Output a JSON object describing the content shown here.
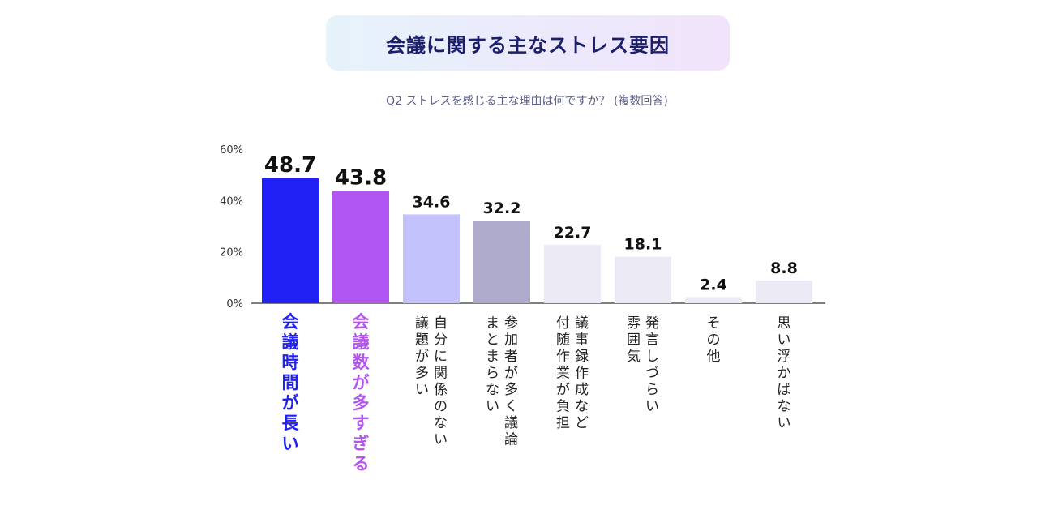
{
  "title": "会議に関する主なストレス要因",
  "subtitle": "Q2 ストレスを感じる主な理由は何ですか？ (複数回答)",
  "chart_data": {
    "type": "bar",
    "ylim": [
      0,
      60
    ],
    "yticks": [
      "0%",
      "20%",
      "40%",
      "60%"
    ],
    "ytick_values": [
      0,
      20,
      40,
      60
    ],
    "categories": [
      [
        "会議時間が長い"
      ],
      [
        "会議数が多すぎる"
      ],
      [
        "自分に関係のない",
        "議題が多い"
      ],
      [
        "参加者が多く議論",
        "まとまらない"
      ],
      [
        "議事録作成など",
        "付随作業が負担"
      ],
      [
        "発言しづらい",
        "雰囲気"
      ],
      [
        "その他"
      ],
      [
        "思い浮かばない"
      ]
    ],
    "values": [
      48.7,
      43.8,
      34.6,
      32.2,
      22.7,
      18.1,
      2.4,
      8.8
    ],
    "value_labels": [
      "48.7",
      "43.8",
      "34.6",
      "32.2",
      "22.7",
      "18.1",
      "2.4",
      "8.8"
    ],
    "bar_colors": [
      "#2121f5",
      "#b155f0",
      "#c4c2fc",
      "#aeaacb",
      "#ebeaf5",
      "#ebeaf5",
      "#ebeaf5",
      "#ebeaf5"
    ],
    "label_colors": [
      "#2222ee",
      "#b155f0",
      "#222222",
      "#222222",
      "#222222",
      "#222222",
      "#222222",
      "#222222"
    ],
    "grid": false
  }
}
